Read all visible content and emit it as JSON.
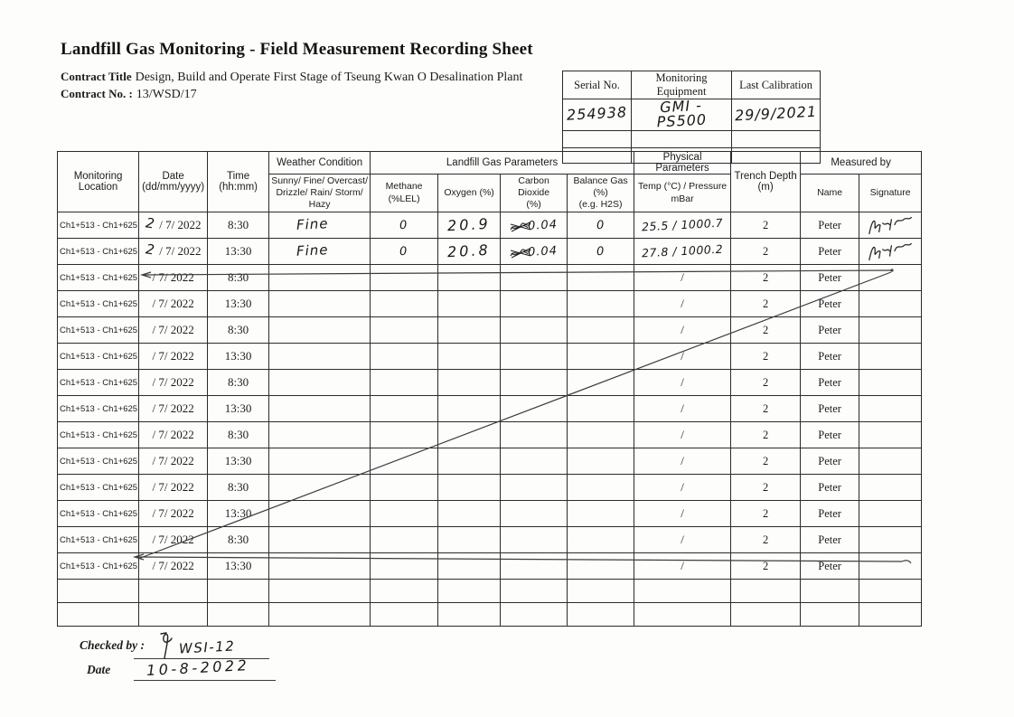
{
  "document": {
    "title": "Landfill Gas Monitoring - Field Measurement Recording Sheet",
    "contract_title_label": "Contract Title",
    "contract_title": "Design, Build and Operate First Stage of Tseung Kwan O Desalination Plant",
    "contract_no_label": "Contract No. :",
    "contract_no": "13/WSD/17"
  },
  "equipment_table": {
    "headers": {
      "serial_no": "Serial No.",
      "equipment": "Monitoring Equipment",
      "last_calibration": "Last Calibration"
    },
    "entry": {
      "serial_no": "254938",
      "equipment": "GMI - PS500",
      "last_calibration": "29/9/2021"
    }
  },
  "main_table": {
    "headers": {
      "location": "Monitoring\nLocation",
      "date": "Date\n(dd/mm/yyyy)",
      "time": "Time\n(hh:mm)",
      "weather_group": "Weather Condition",
      "weather_sub": "Sunny/ Fine/ Overcast/\nDrizzle/ Rain/ Storm/ Hazy",
      "gas_group": "Landfill Gas Parameters",
      "methane": "Methane (%LEL)",
      "oxygen": "Oxygen (%)",
      "co2": "Carbon Dioxide\n(%)",
      "balance": "Balance Gas (%)\n(e.g. H2S)",
      "physical_group": "Physical Parameters",
      "temp_pressure": "Temp (°C) / Pressure mBar",
      "trench": "Trench Depth (m)",
      "measured_group": "Measured by",
      "name": "Name",
      "signature": "Signature"
    },
    "rows": [
      {
        "location": "Ch1+513 - Ch1+625",
        "day_hw": "2",
        "date": "/ 7/ 2022",
        "time": "8:30",
        "weather_hw": "Fine",
        "methane_hw": "0",
        "oxygen_hw": "20.9",
        "co2_hw": "0.04",
        "co2_scribbled": true,
        "balance_hw": "0",
        "temp_hw": "25.5 / 1000.7",
        "trench": "2",
        "name": "Peter",
        "signed": true,
        "struck": false
      },
      {
        "location": "Ch1+513 - Ch1+625",
        "day_hw": "2",
        "date": "/ 7/ 2022",
        "time": "13:30",
        "weather_hw": "Fine",
        "methane_hw": "0",
        "oxygen_hw": "20.8",
        "co2_hw": "0.04",
        "co2_scribbled": true,
        "balance_hw": "0",
        "temp_hw": "27.8 / 1000.2",
        "trench": "2",
        "name": "Peter",
        "signed": true,
        "struck": false
      },
      {
        "location": "Ch1+513 - Ch1+625",
        "date": "/ 7/ 2022",
        "time": "8:30",
        "temp": "/",
        "trench": "2",
        "name": "Peter",
        "struck": true
      },
      {
        "location": "Ch1+513 - Ch1+625",
        "date": "/ 7/ 2022",
        "time": "13:30",
        "temp": "/",
        "trench": "2",
        "name": "Peter",
        "struck": false
      },
      {
        "location": "Ch1+513 - Ch1+625",
        "date": "/ 7/ 2022",
        "time": "8:30",
        "temp": "/",
        "trench": "2",
        "name": "Peter",
        "struck": false
      },
      {
        "location": "Ch1+513 - Ch1+625",
        "date": "/ 7/ 2022",
        "time": "13:30",
        "temp": "/",
        "trench": "2",
        "name": "Peter",
        "struck": false
      },
      {
        "location": "Ch1+513 - Ch1+625",
        "date": "/ 7/ 2022",
        "time": "8:30",
        "temp": "/",
        "trench": "2",
        "name": "Peter",
        "struck": false
      },
      {
        "location": "Ch1+513 - Ch1+625",
        "date": "/ 7/ 2022",
        "time": "13:30",
        "temp": "/",
        "trench": "2",
        "name": "Peter",
        "struck": false
      },
      {
        "location": "Ch1+513 - Ch1+625",
        "date": "/ 7/ 2022",
        "time": "8:30",
        "temp": "/",
        "trench": "2",
        "name": "Peter",
        "struck": false
      },
      {
        "location": "Ch1+513 - Ch1+625",
        "date": "/ 7/ 2022",
        "time": "13:30",
        "temp": "/",
        "trench": "2",
        "name": "Peter",
        "struck": false
      },
      {
        "location": "Ch1+513 - Ch1+625",
        "date": "/ 7/ 2022",
        "time": "8:30",
        "temp": "/",
        "trench": "2",
        "name": "Peter",
        "struck": false
      },
      {
        "location": "Ch1+513 - Ch1+625",
        "date": "/ 7/ 2022",
        "time": "13:30",
        "temp": "/",
        "trench": "2",
        "name": "Peter",
        "struck": false
      },
      {
        "location": "Ch1+513 - Ch1+625",
        "date": "/ 7/ 2022",
        "time": "8:30",
        "temp": "/",
        "trench": "2",
        "name": "Peter",
        "struck": false
      },
      {
        "location": "Ch1+513 - Ch1+625",
        "date": "/ 7/ 2022",
        "time": "13:30",
        "temp": "/",
        "trench": "2",
        "name": "Peter",
        "struck": true
      },
      {
        "location": "",
        "date": "",
        "time": "",
        "temp": "",
        "trench": "",
        "name": "",
        "struck": false
      },
      {
        "location": "",
        "date": "",
        "time": "",
        "temp": "",
        "trench": "",
        "name": "",
        "struck": false
      }
    ]
  },
  "footer": {
    "checked_by_label": "Checked by :",
    "checked_by_value": "WSI-12",
    "date_label": "Date",
    "date_value": "10-8-2022"
  }
}
